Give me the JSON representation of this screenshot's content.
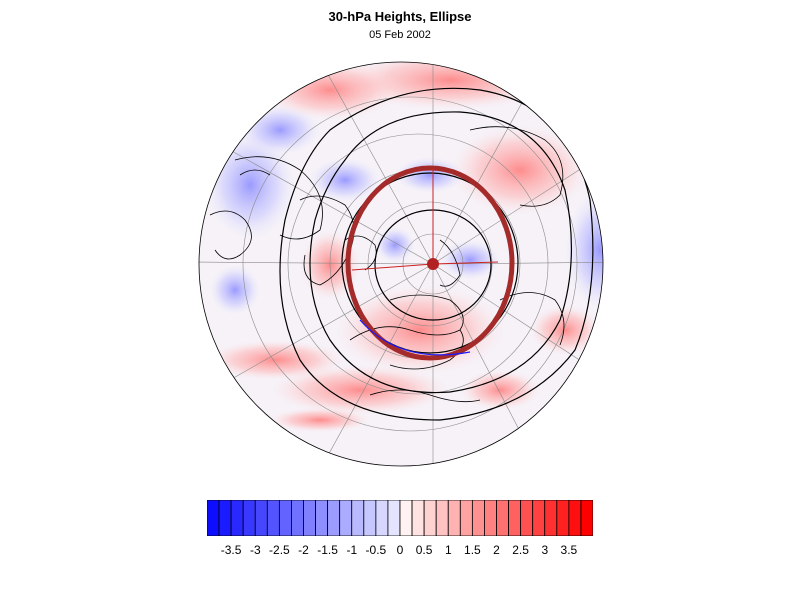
{
  "header": {
    "title": "30-hPa Heights, Ellipse",
    "date": "05 Feb 2002"
  },
  "legend": {
    "color_min": "#0000ff",
    "color_mid": "#ffffff",
    "color_max": "#ff0000",
    "levels": [
      -3.75,
      -3.5,
      -3.25,
      -3,
      -2.75,
      -2.5,
      -2.25,
      -2,
      -1.75,
      -1.5,
      -1.25,
      -1,
      -0.75,
      -0.5,
      -0.25,
      0,
      0.25,
      0.5,
      0.75,
      1,
      1.25,
      1.5,
      1.75,
      2,
      2.25,
      2.5,
      2.75,
      3,
      3.25,
      3.5,
      3.75
    ],
    "tick_labels": [
      "-3.5",
      "-3",
      "-2.5",
      "-2",
      "-1.5",
      "-1",
      "-0.5",
      "0",
      "0.5",
      "1",
      "1.5",
      "2",
      "2.5",
      "3",
      "3.5"
    ]
  },
  "map": {
    "projection": "north-polar-stereographic",
    "ellipse_color": "#a52a2a",
    "ellipse_outline_color": "#1a1aff",
    "contour_color": "#000000"
  }
}
